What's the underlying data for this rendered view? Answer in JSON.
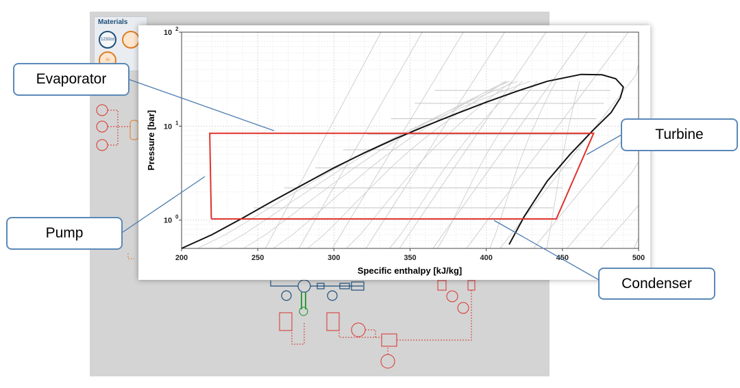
{
  "materials_panel": {
    "title": "Materials",
    "item1_label": "1233zd",
    "item3_label": "Al"
  },
  "callouts": {
    "evaporator": "Evaporator",
    "turbine": "Turbine",
    "pump": "Pump",
    "condenser": "Condenser"
  },
  "chart_data": {
    "type": "line",
    "title": "",
    "xlabel": "Specific enthalpy [kJ/kg]",
    "ylabel": "Pressure [bar]",
    "xlim": [
      200,
      500
    ],
    "ylim": [
      0.5,
      100
    ],
    "yscale": "log",
    "x_ticks": [
      200,
      250,
      300,
      350,
      400,
      450,
      500
    ],
    "y_ticks": [
      {
        "value": 1,
        "base": "10",
        "exp": "0"
      },
      {
        "value": 10,
        "base": "10",
        "exp": "1"
      },
      {
        "value": 100,
        "base": "10",
        "exp": "2"
      }
    ],
    "grid": true,
    "colors": {
      "dome": "#111111",
      "cycle": "#e0312b",
      "isolines": "#c8c8c8",
      "grid": "#e4e4e4"
    },
    "saturation_liquid": [
      [
        200,
        0.48
      ],
      [
        220,
        0.7
      ],
      [
        240,
        1.05
      ],
      [
        260,
        1.6
      ],
      [
        280,
        2.4
      ],
      [
        300,
        3.6
      ],
      [
        320,
        5.2
      ],
      [
        340,
        7.3
      ],
      [
        360,
        10.0
      ],
      [
        380,
        13.5
      ],
      [
        400,
        18.0
      ],
      [
        420,
        23.5
      ],
      [
        440,
        30.0
      ],
      [
        462,
        35.5
      ]
    ],
    "saturation_vapor": [
      [
        462,
        35.5
      ],
      [
        476,
        35.2
      ],
      [
        485,
        32.0
      ],
      [
        490,
        26.0
      ],
      [
        488,
        20.0
      ],
      [
        482,
        14.0
      ],
      [
        470,
        9.0
      ],
      [
        455,
        5.0
      ],
      [
        440,
        2.6
      ],
      [
        425,
        1.1
      ],
      [
        415,
        0.55
      ]
    ],
    "cycle": [
      [
        219.5,
        1.03
      ],
      [
        218.5,
        8.4
      ],
      [
        470.5,
        8.4
      ],
      [
        446,
        1.03
      ],
      [
        219.5,
        1.03
      ]
    ]
  }
}
